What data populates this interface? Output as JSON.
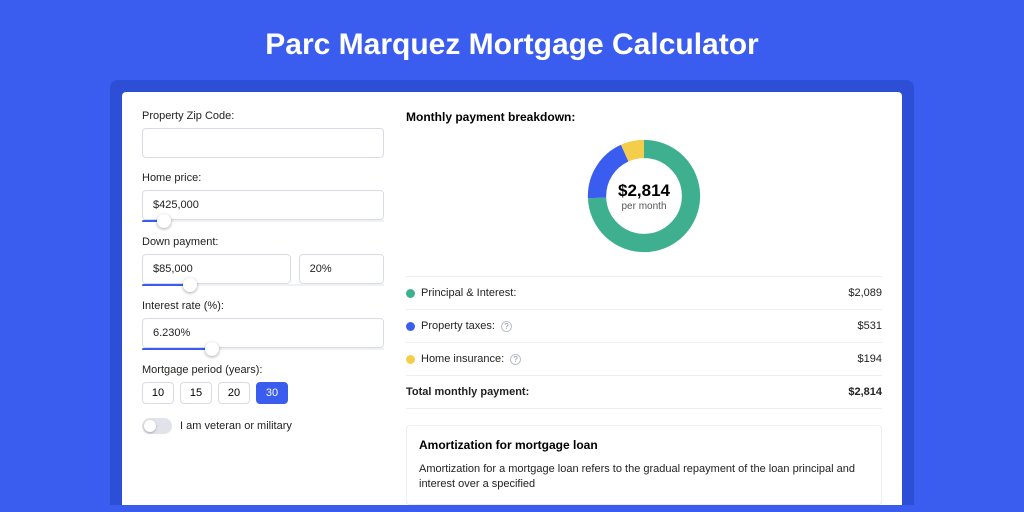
{
  "page": {
    "title": "Parc Marquez Mortgage Calculator",
    "bg_color": "#3a5df0",
    "accent_color": "#2d4fd6"
  },
  "form": {
    "zip": {
      "label": "Property Zip Code:",
      "value": ""
    },
    "price": {
      "label": "Home price:",
      "value": "$425,000",
      "slider_pct": 9
    },
    "down": {
      "label": "Down payment:",
      "value": "$85,000",
      "pct": "20%",
      "slider_pct": 20
    },
    "rate": {
      "label": "Interest rate (%):",
      "value": "6.230%",
      "slider_pct": 29
    },
    "period": {
      "label": "Mortgage period (years):",
      "options": [
        "10",
        "15",
        "20",
        "30"
      ],
      "selected": "30"
    },
    "veteran": {
      "label": "I am veteran or military",
      "on": false
    }
  },
  "breakdown": {
    "title": "Monthly payment breakdown:",
    "donut": {
      "amount": "$2,814",
      "sub": "per month",
      "thickness": 18,
      "slices": [
        {
          "key": "pi",
          "color": "#3fb08f",
          "value": 2089
        },
        {
          "key": "tax",
          "color": "#3a5df0",
          "value": 531
        },
        {
          "key": "ins",
          "color": "#f4ce4b",
          "value": 194
        }
      ]
    },
    "rows": [
      {
        "label": "Principal & Interest:",
        "color": "#3fb08f",
        "help": false,
        "value": "$2,089"
      },
      {
        "label": "Property taxes:",
        "color": "#3a5df0",
        "help": true,
        "value": "$531"
      },
      {
        "label": "Home insurance:",
        "color": "#f4ce4b",
        "help": true,
        "value": "$194"
      }
    ],
    "total": {
      "label": "Total monthly payment:",
      "value": "$2,814"
    }
  },
  "amort": {
    "title": "Amortization for mortgage loan",
    "text": "Amortization for a mortgage loan refers to the gradual repayment of the loan principal and interest over a specified"
  }
}
